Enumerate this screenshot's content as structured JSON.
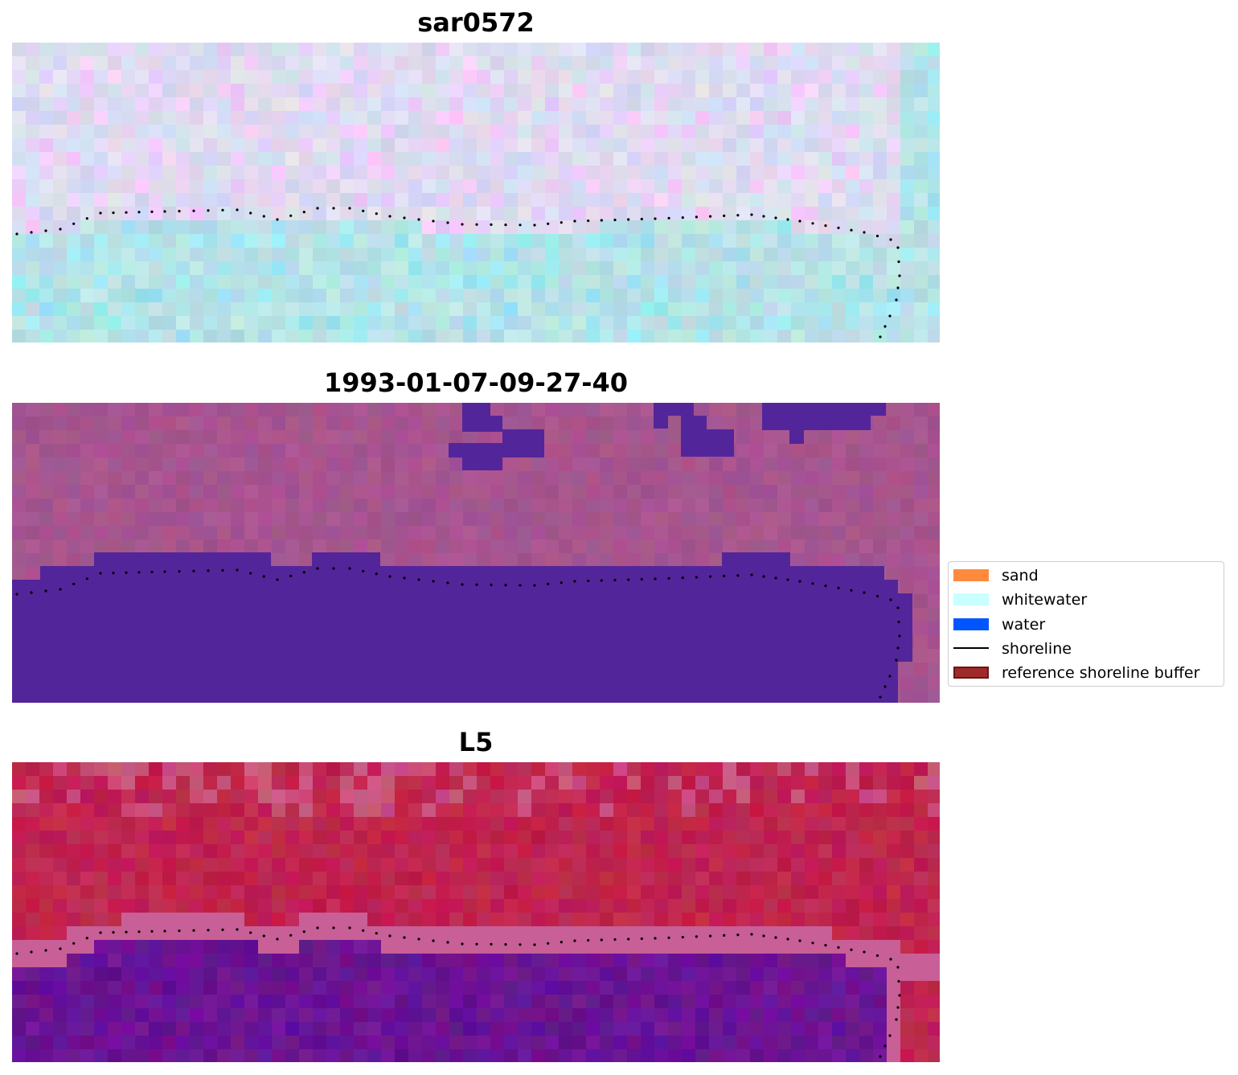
{
  "panels": [
    {
      "title": "sar0572",
      "style": "sar"
    },
    {
      "title": "1993-01-07-09-27-40",
      "style": "classified"
    },
    {
      "title": "L5",
      "style": "index"
    }
  ],
  "legend": {
    "items": [
      {
        "label": "sand",
        "kind": "patch",
        "color": "#ff8a3d"
      },
      {
        "label": "whitewater",
        "kind": "patch",
        "color": "#c8ffff"
      },
      {
        "label": "water",
        "kind": "patch",
        "color": "#0055ff"
      },
      {
        "label": "shoreline",
        "kind": "line",
        "color": "#000000"
      },
      {
        "label": "reference shoreline buffer",
        "kind": "patch",
        "color": "#9e2a2a",
        "edge": "#6e1414"
      }
    ]
  },
  "colors": {
    "classified_water": "#53259a",
    "classified_land": "#a6558f",
    "index_land": "#c0244f",
    "index_water": "#6a1494",
    "sar_land": "#dcdcf0",
    "sar_water": "#b8e2e6",
    "shoreline_dots": "#000000"
  }
}
